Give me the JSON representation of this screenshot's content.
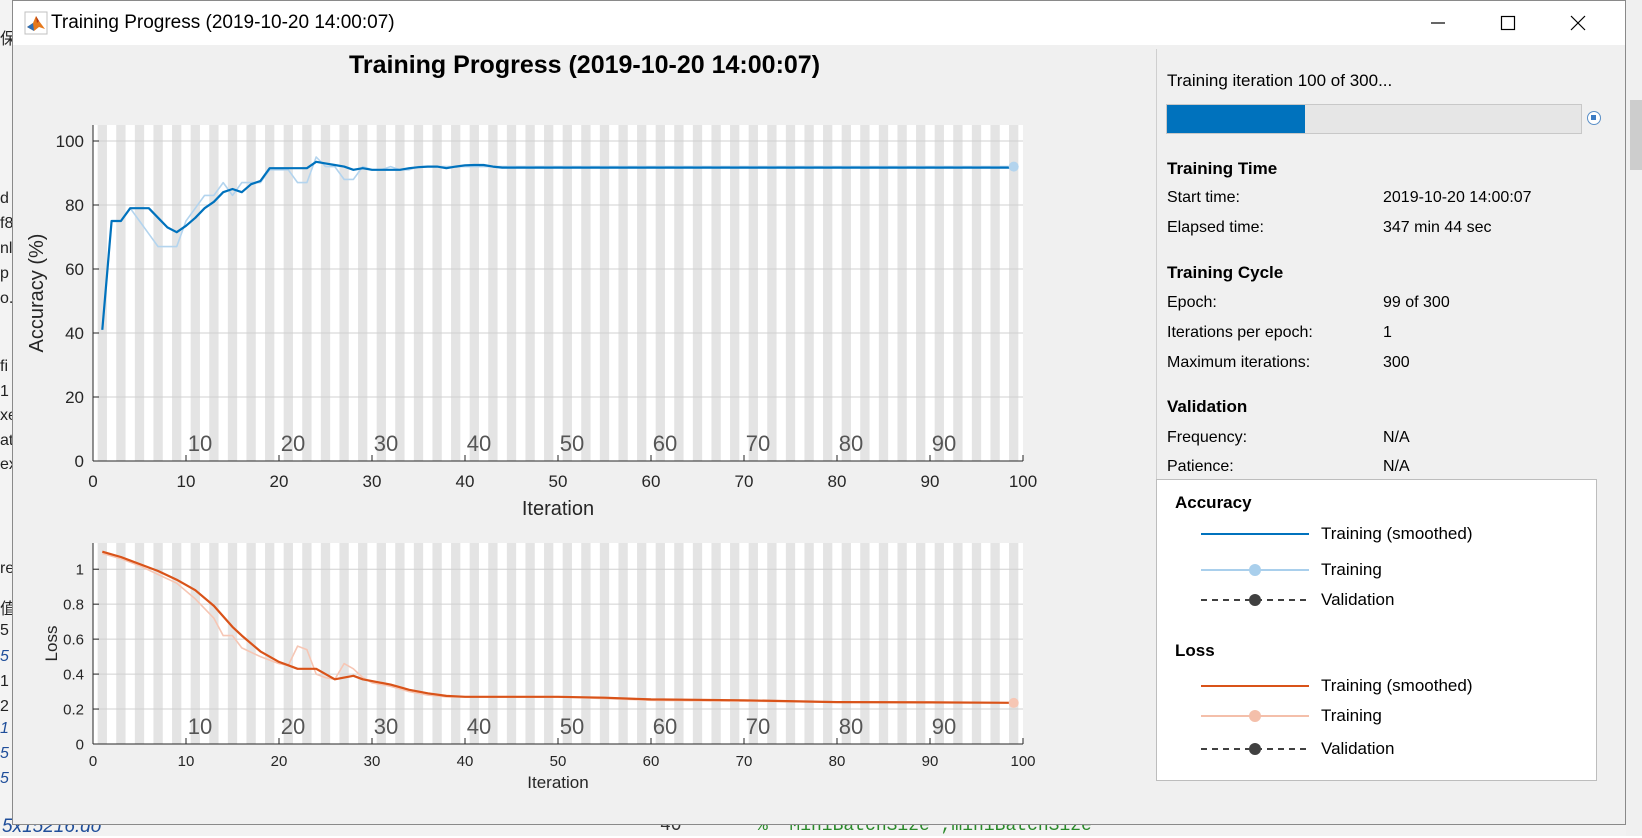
{
  "window": {
    "title": "Training Progress (2019-10-20 14:00:07)",
    "controls": [
      "minimize",
      "maximize",
      "close"
    ]
  },
  "background": {
    "left_fragments": [
      "保",
      "d",
      "f8",
      "nl",
      "p",
      "o.",
      "fi",
      "1",
      "xe",
      "at",
      "ex",
      "re",
      "值",
      "5",
      "5",
      "1",
      "2",
      "1",
      "5",
      "5"
    ],
    "bottom_file": "5x15216.do",
    "bottom_line_number": "40",
    "bottom_code": "%   'MiniBatchSize',miniBatchSize"
  },
  "chart_title": "Training Progress (2019-10-20 14:00:07)",
  "chart_data": [
    {
      "type": "line",
      "name": "accuracy",
      "title": "",
      "xlabel": "Iteration",
      "ylabel": "Accuracy (%)",
      "xlim": [
        0,
        100
      ],
      "ylim": [
        0,
        105
      ],
      "xticks": [
        0,
        10,
        20,
        30,
        40,
        50,
        60,
        70,
        80,
        90,
        100
      ],
      "yticks": [
        0,
        20,
        40,
        60,
        80,
        100
      ],
      "epoch_labels": [
        10,
        20,
        30,
        40,
        50,
        60,
        70,
        80,
        90
      ],
      "series": [
        {
          "name": "Training",
          "color": "#b3d4ee",
          "x": [
            1,
            2,
            3,
            4,
            5,
            6,
            7,
            8,
            9,
            10,
            11,
            12,
            13,
            14,
            15,
            16,
            17,
            18,
            19,
            20,
            21,
            22,
            23,
            24,
            25,
            26,
            27,
            28,
            29,
            30,
            31,
            32,
            33,
            34,
            35,
            36,
            37,
            38,
            39,
            40,
            41,
            42,
            43,
            44,
            45,
            50,
            60,
            70,
            80,
            90,
            99
          ],
          "y": [
            41,
            75,
            75,
            79,
            75,
            71,
            67,
            67,
            67,
            75,
            79,
            83,
            83,
            87,
            83,
            87,
            87,
            87,
            91,
            91,
            91,
            87,
            87,
            95,
            92,
            92,
            88,
            88,
            92,
            91,
            91,
            92,
            91,
            91,
            92,
            92,
            92,
            92,
            92,
            92,
            92,
            92,
            92,
            92,
            92,
            92,
            92,
            92,
            92,
            92,
            92
          ]
        },
        {
          "name": "Training (smoothed)",
          "color": "#0072bd",
          "x": [
            1,
            2,
            3,
            4,
            5,
            6,
            7,
            8,
            9,
            10,
            11,
            12,
            13,
            14,
            15,
            16,
            17,
            18,
            19,
            20,
            21,
            22,
            23,
            24,
            25,
            26,
            27,
            28,
            29,
            30,
            31,
            32,
            33,
            34,
            35,
            36,
            37,
            38,
            39,
            40,
            41,
            42,
            43,
            44,
            45,
            50,
            60,
            70,
            80,
            90,
            99
          ],
          "y": [
            41,
            75,
            75,
            79,
            79,
            79,
            76,
            73,
            71.5,
            73.5,
            76,
            79,
            81,
            84,
            85,
            84,
            86.5,
            87.5,
            91.5,
            91.5,
            91.5,
            91.5,
            91.5,
            93.5,
            93,
            92.5,
            92,
            91,
            91.5,
            91,
            91,
            91,
            91,
            91.5,
            91.8,
            92,
            92,
            91.5,
            92,
            92.4,
            92.5,
            92.5,
            92,
            91.7,
            91.7,
            91.7,
            91.7,
            91.7,
            91.7,
            91.7,
            91.7
          ]
        }
      ]
    },
    {
      "type": "line",
      "name": "loss",
      "title": "",
      "xlabel": "Iteration",
      "ylabel": "Loss",
      "xlim": [
        0,
        100
      ],
      "ylim": [
        0,
        1.15
      ],
      "xticks": [
        0,
        10,
        20,
        30,
        40,
        50,
        60,
        70,
        80,
        90,
        100
      ],
      "yticks": [
        0,
        0.2,
        0.4,
        0.6,
        0.8,
        1
      ],
      "ytick_labels": [
        "0",
        "0.2",
        "0.4",
        "0.6",
        "0.8",
        "1"
      ],
      "epoch_labels": [
        10,
        20,
        30,
        40,
        50,
        60,
        70,
        80,
        90
      ],
      "series": [
        {
          "name": "Training",
          "color": "#f6c6b4",
          "x": [
            1,
            3,
            5,
            7,
            9,
            11,
            13,
            14,
            15,
            16,
            18,
            20,
            21,
            22,
            23,
            24,
            25,
            26,
            27,
            28,
            29,
            30,
            32,
            34,
            36,
            38,
            40,
            45,
            50,
            55,
            60,
            70,
            80,
            90,
            99
          ],
          "y": [
            1.09,
            1.06,
            1.02,
            0.97,
            0.92,
            0.83,
            0.72,
            0.62,
            0.62,
            0.55,
            0.5,
            0.46,
            0.45,
            0.56,
            0.54,
            0.4,
            0.38,
            0.37,
            0.46,
            0.43,
            0.38,
            0.35,
            0.33,
            0.3,
            0.28,
            0.27,
            0.27,
            0.27,
            0.27,
            0.26,
            0.25,
            0.245,
            0.24,
            0.24,
            0.235
          ]
        },
        {
          "name": "Training (smoothed)",
          "color": "#d95319",
          "x": [
            1,
            3,
            5,
            7,
            9,
            11,
            13,
            14,
            15,
            16,
            18,
            20,
            21,
            22,
            23,
            24,
            25,
            26,
            27,
            28,
            29,
            30,
            32,
            34,
            36,
            38,
            40,
            45,
            50,
            55,
            60,
            70,
            80,
            90,
            99
          ],
          "y": [
            1.1,
            1.07,
            1.03,
            0.99,
            0.94,
            0.88,
            0.79,
            0.73,
            0.67,
            0.62,
            0.53,
            0.47,
            0.45,
            0.43,
            0.43,
            0.43,
            0.4,
            0.37,
            0.38,
            0.39,
            0.37,
            0.36,
            0.34,
            0.31,
            0.29,
            0.275,
            0.27,
            0.27,
            0.27,
            0.265,
            0.255,
            0.25,
            0.24,
            0.238,
            0.236
          ]
        }
      ]
    }
  ],
  "info": {
    "status": "Training iteration 100 of 300...",
    "progress": 0.333,
    "sections": [
      {
        "title": "Training Time",
        "rows": [
          {
            "label": "Start time:",
            "value": "2019-10-20 14:00:07"
          },
          {
            "label": "Elapsed time:",
            "value": "347 min 44 sec"
          }
        ]
      },
      {
        "title": "Training Cycle",
        "rows": [
          {
            "label": "Epoch:",
            "value": "99 of 300"
          },
          {
            "label": "Iterations per epoch:",
            "value": "1"
          },
          {
            "label": "Maximum iterations:",
            "value": "300"
          }
        ]
      },
      {
        "title": "Validation",
        "rows": [
          {
            "label": "Frequency:",
            "value": "N/A"
          },
          {
            "label": "Patience:",
            "value": "N/A"
          }
        ]
      }
    ]
  },
  "legend": {
    "accuracy": {
      "title": "Accuracy",
      "items": [
        {
          "label": "Training (smoothed)",
          "color": "#0072bd",
          "style": "line"
        },
        {
          "label": "Training",
          "color": "#a9cfec",
          "style": "line-dot"
        },
        {
          "label": "Validation",
          "color": "#404040",
          "style": "dashed-dot"
        }
      ]
    },
    "loss": {
      "title": "Loss",
      "items": [
        {
          "label": "Training (smoothed)",
          "color": "#d95319",
          "style": "line"
        },
        {
          "label": "Training",
          "color": "#f4bfaa",
          "style": "line-dot"
        },
        {
          "label": "Validation",
          "color": "#404040",
          "style": "dashed-dot"
        }
      ]
    }
  }
}
